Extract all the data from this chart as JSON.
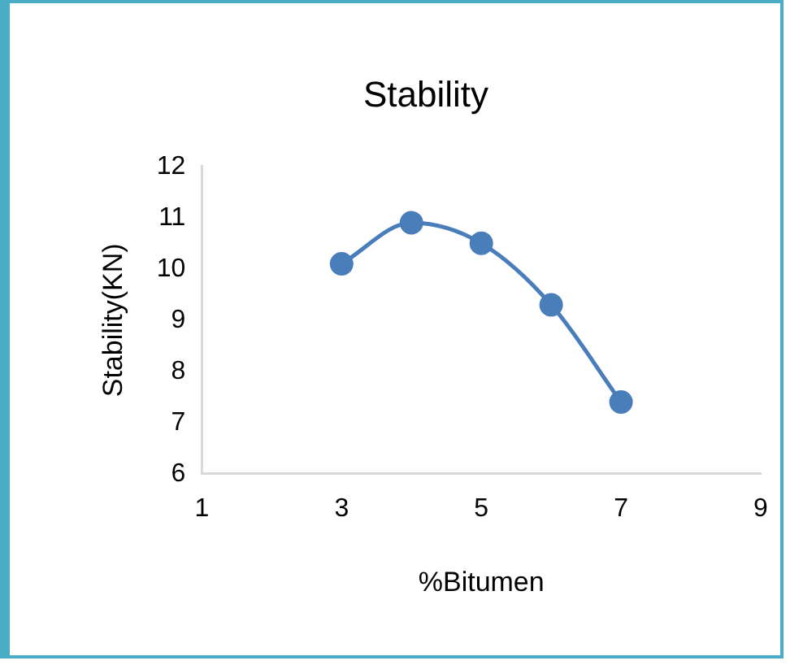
{
  "chart_data": {
    "type": "line",
    "title": "Stability",
    "xlabel": "%Bitumen",
    "ylabel": "Stability(KN)",
    "x": [
      3,
      4,
      5,
      6,
      7
    ],
    "series": [
      {
        "color": "#4a7ebb",
        "values": [
          10.1,
          10.9,
          10.5,
          9.3,
          7.4
        ]
      }
    ],
    "xlim": [
      1,
      9
    ],
    "xticks": [
      1,
      3,
      5,
      7,
      9
    ],
    "ylim": [
      6,
      12
    ],
    "yticks": [
      6,
      7,
      8,
      9,
      10,
      11,
      12
    ],
    "grid": false,
    "legend": false,
    "marker": "circle",
    "line_style": "solid"
  }
}
